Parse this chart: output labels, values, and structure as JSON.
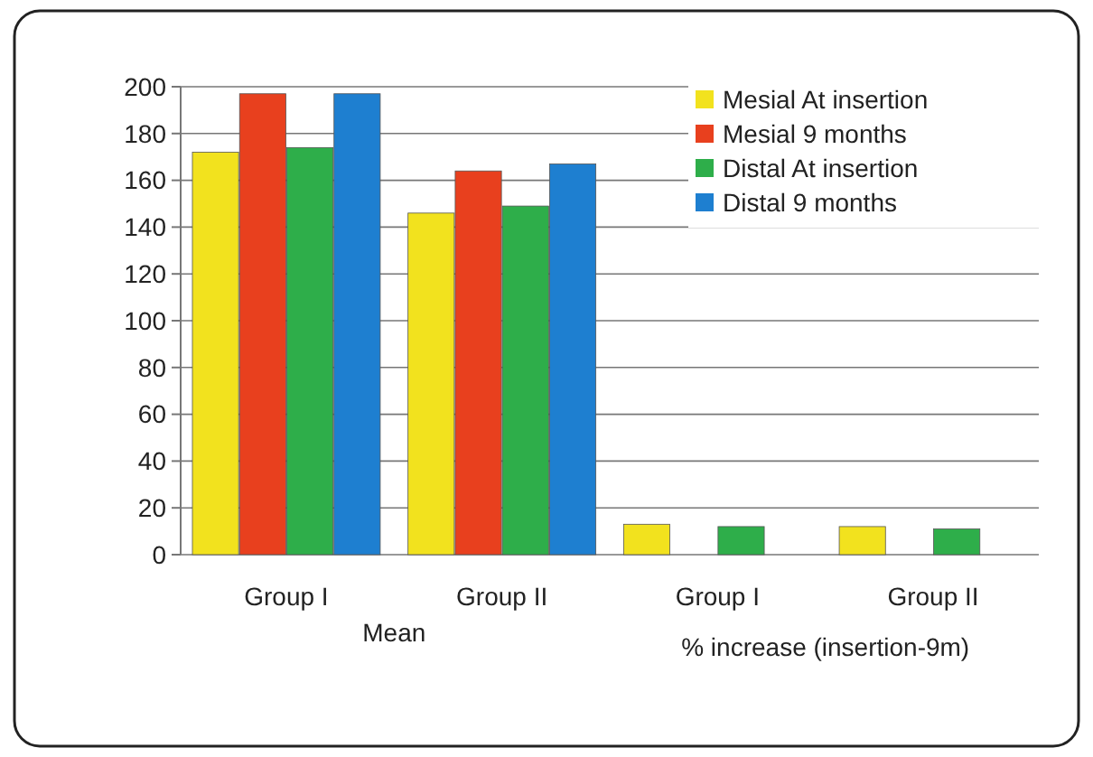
{
  "chart_data": {
    "type": "bar",
    "categories": [
      "Group I",
      "Group II",
      "Group I",
      "Group II"
    ],
    "series": [
      {
        "name": "Mesial At insertion",
        "color": "#f2e21e",
        "values": [
          172,
          146,
          13,
          12
        ]
      },
      {
        "name": "Mesial 9 months",
        "color": "#e8401e",
        "values": [
          197,
          164,
          null,
          null
        ]
      },
      {
        "name": "Distal At insertion",
        "color": "#2eae4a",
        "values": [
          174,
          149,
          12,
          11
        ]
      },
      {
        "name": "Distal 9 months",
        "color": "#1e7fd0",
        "values": [
          197,
          167,
          null,
          null
        ]
      }
    ],
    "ylim": [
      0,
      200
    ],
    "yticks": [
      0,
      20,
      40,
      60,
      80,
      100,
      120,
      140,
      160,
      180,
      200
    ],
    "grid": "y",
    "legend": "top right",
    "annotations": [
      "Mean",
      "% increase (insertion-9m)"
    ]
  }
}
